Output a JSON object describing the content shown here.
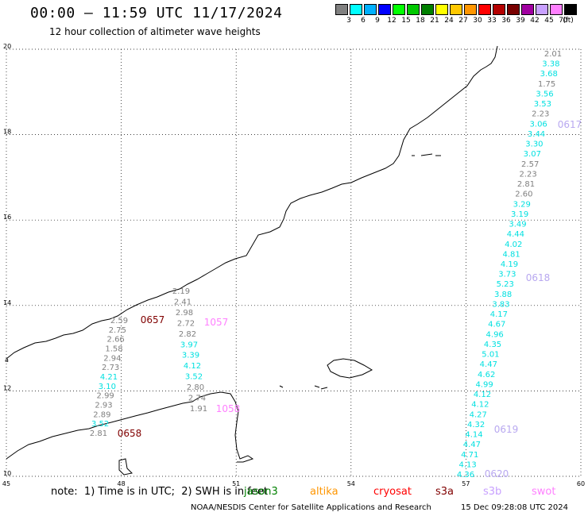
{
  "title": "00:00 – 11:59 UTC 11/17/2024",
  "subtitle": "12 hour collection of altimeter wave heights",
  "legend": {
    "swatches": [
      {
        "color": "#808080",
        "label": "3"
      },
      {
        "color": "#00ffff",
        "label": "6"
      },
      {
        "color": "#00b0ff",
        "label": "9"
      },
      {
        "color": "#0000ff",
        "label": "12"
      },
      {
        "color": "#00ff00",
        "label": "15"
      },
      {
        "color": "#00c800",
        "label": "18"
      },
      {
        "color": "#008000",
        "label": "21"
      },
      {
        "color": "#ffff00",
        "label": "24"
      },
      {
        "color": "#ffc800",
        "label": "27"
      },
      {
        "color": "#ff9600",
        "label": "30"
      },
      {
        "color": "#ff0000",
        "label": "33"
      },
      {
        "color": "#b40000",
        "label": "36"
      },
      {
        "color": "#780000",
        "label": "39"
      },
      {
        "color": "#a000a0",
        "label": "42"
      },
      {
        "color": "#c8a0ff",
        "label": "45"
      },
      {
        "color": "#ff80ff",
        "label": "70"
      },
      {
        "color": "#000000",
        "label": ""
      }
    ],
    "unit": "(ft)"
  },
  "axes": {
    "lat_ticks": [
      "20",
      "18",
      "16",
      "14",
      "12",
      "10"
    ],
    "lon_ticks": [
      "45",
      "48",
      "51",
      "54",
      "57",
      "60"
    ],
    "lat_range": [
      10,
      20
    ],
    "lon_range": [
      45,
      60
    ],
    "side_mark": "a"
  },
  "colors": {
    "gray": "#7f7f7f",
    "cyan": "#00e0e0",
    "dark_red": "#800000",
    "pink": "#ff80ff",
    "lavender": "#b8a8f0"
  },
  "tracks": {
    "east": [
      {
        "v": "2.01",
        "c": "gray"
      },
      {
        "v": "3.38",
        "c": "cyan"
      },
      {
        "v": "3.68",
        "c": "cyan"
      },
      {
        "v": "1.75",
        "c": "gray"
      },
      {
        "v": "3.56",
        "c": "cyan"
      },
      {
        "v": "3.53",
        "c": "cyan"
      },
      {
        "v": "2.23",
        "c": "gray"
      },
      {
        "v": "3.06",
        "c": "cyan"
      },
      {
        "v": "3.44",
        "c": "cyan"
      },
      {
        "v": "3.30",
        "c": "cyan"
      },
      {
        "v": "3.07",
        "c": "cyan"
      },
      {
        "v": "2.57",
        "c": "gray"
      },
      {
        "v": "2.23",
        "c": "gray"
      },
      {
        "v": "2.81",
        "c": "gray"
      },
      {
        "v": "2.60",
        "c": "gray"
      },
      {
        "v": "3.29",
        "c": "cyan"
      },
      {
        "v": "3.19",
        "c": "cyan"
      },
      {
        "v": "3.49",
        "c": "cyan"
      },
      {
        "v": "4.44",
        "c": "cyan"
      },
      {
        "v": "4.02",
        "c": "cyan"
      },
      {
        "v": "4.81",
        "c": "cyan"
      },
      {
        "v": "4.19",
        "c": "cyan"
      },
      {
        "v": "3.73",
        "c": "cyan"
      },
      {
        "v": "5.23",
        "c": "cyan"
      },
      {
        "v": "3.88",
        "c": "cyan"
      },
      {
        "v": "3.83",
        "c": "cyan"
      },
      {
        "v": "4.17",
        "c": "cyan"
      },
      {
        "v": "4.67",
        "c": "cyan"
      },
      {
        "v": "4.96",
        "c": "cyan"
      },
      {
        "v": "4.35",
        "c": "cyan"
      },
      {
        "v": "5.01",
        "c": "cyan"
      },
      {
        "v": "4.47",
        "c": "cyan"
      },
      {
        "v": "4.62",
        "c": "cyan"
      },
      {
        "v": "4.99",
        "c": "cyan"
      },
      {
        "v": "4.12",
        "c": "cyan"
      },
      {
        "v": "4.12",
        "c": "cyan"
      },
      {
        "v": "4.27",
        "c": "cyan"
      },
      {
        "v": "4.32",
        "c": "cyan"
      },
      {
        "v": "4.14",
        "c": "cyan"
      },
      {
        "v": "4.47",
        "c": "cyan"
      },
      {
        "v": "4.71",
        "c": "cyan"
      },
      {
        "v": "4.13",
        "c": "cyan"
      },
      {
        "v": "4.36",
        "c": "cyan"
      }
    ],
    "middle": [
      {
        "v": "2.19",
        "c": "gray"
      },
      {
        "v": "2.41",
        "c": "gray"
      },
      {
        "v": "2.98",
        "c": "gray"
      },
      {
        "v": "2.72",
        "c": "gray"
      },
      {
        "v": "2.82",
        "c": "gray"
      },
      {
        "v": "3.97",
        "c": "cyan"
      },
      {
        "v": "3.39",
        "c": "cyan"
      },
      {
        "v": "4.12",
        "c": "cyan"
      },
      {
        "v": "3.52",
        "c": "cyan"
      },
      {
        "v": "2.80",
        "c": "gray"
      },
      {
        "v": "2.74",
        "c": "gray"
      },
      {
        "v": "1.91",
        "c": "gray"
      }
    ],
    "west": [
      {
        "v": "2.59",
        "c": "gray"
      },
      {
        "v": "2.75",
        "c": "gray"
      },
      {
        "v": "2.66",
        "c": "gray"
      },
      {
        "v": "1.58",
        "c": "gray"
      },
      {
        "v": "2.94",
        "c": "gray"
      },
      {
        "v": "2.73",
        "c": "gray"
      },
      {
        "v": "4.21",
        "c": "cyan"
      },
      {
        "v": "3.10",
        "c": "cyan"
      },
      {
        "v": "2.99",
        "c": "gray"
      },
      {
        "v": "2.93",
        "c": "gray"
      },
      {
        "v": "2.89",
        "c": "gray"
      },
      {
        "v": "3.52",
        "c": "cyan"
      },
      {
        "v": "2.81",
        "c": "gray"
      }
    ]
  },
  "pass_times": [
    {
      "t": "0617",
      "c": "lavender"
    },
    {
      "t": "0618",
      "c": "lavender"
    },
    {
      "t": "0619",
      "c": "lavender"
    },
    {
      "t": "0620",
      "c": "lavender"
    },
    {
      "t": "0657",
      "c": "dark_red"
    },
    {
      "t": "0658",
      "c": "dark_red"
    },
    {
      "t": "1057",
      "c": "pink"
    },
    {
      "t": "1058",
      "c": "pink"
    }
  ],
  "footer": {
    "note": "note:  1) Time is in UTC;  2) SWH is in feet",
    "missions": [
      {
        "name": "jason3",
        "color": "#008000"
      },
      {
        "name": "altika",
        "color": "#ff9600"
      },
      {
        "name": "cryosat",
        "color": "#ff0000"
      },
      {
        "name": "s3a",
        "color": "#800000"
      },
      {
        "name": "s3b",
        "color": "#c8a0ff"
      },
      {
        "name": "swot",
        "color": "#ff80ff"
      }
    ],
    "credit": "NOAA/NESDIS Center for Satellite Applications and Research",
    "timestamp": "15 Dec 09:28:08 UTC 2024"
  }
}
